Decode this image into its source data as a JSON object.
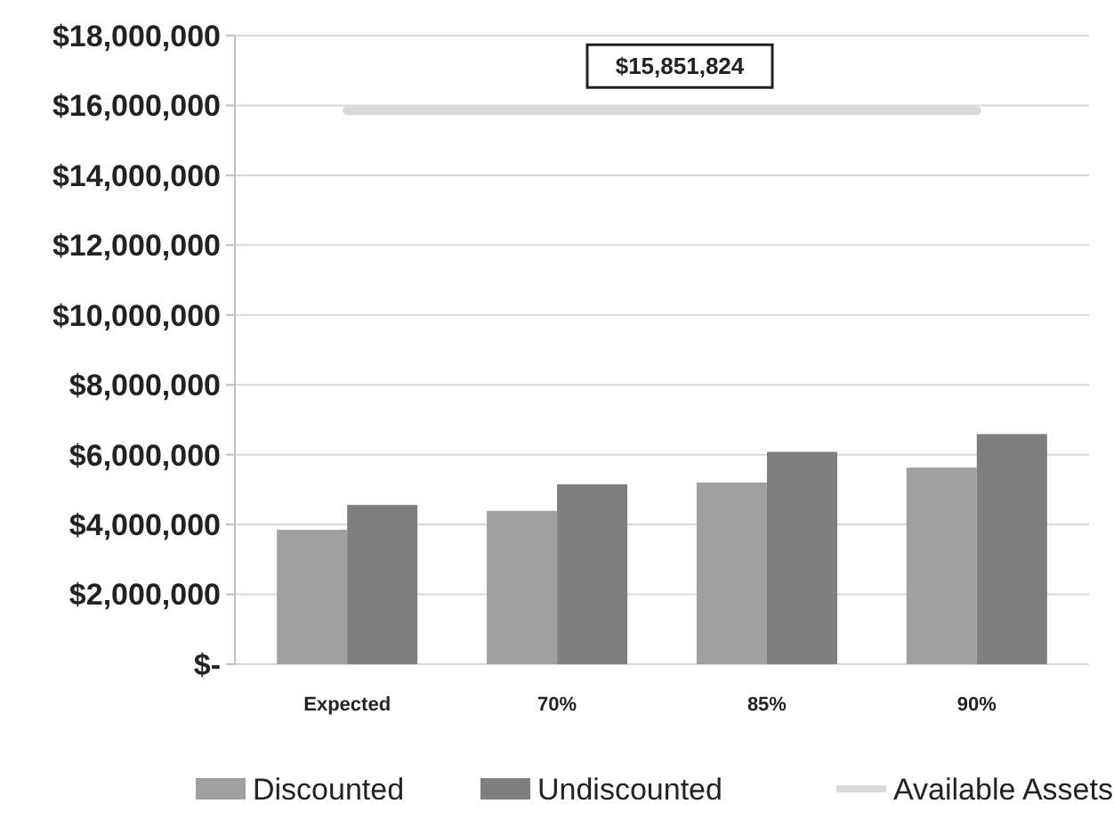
{
  "chart_data": {
    "type": "bar",
    "categories": [
      "Expected",
      "70%",
      "85%",
      "90%"
    ],
    "series": [
      {
        "name": "Discounted",
        "color": "#a0a0a0",
        "values": [
          3850000,
          4390000,
          5200000,
          5630000
        ]
      },
      {
        "name": "Undiscounted",
        "color": "#7f7f7f",
        "values": [
          4560000,
          5150000,
          6080000,
          6590000
        ]
      },
      {
        "name": "Available Assets",
        "type": "line",
        "color": "#d9d9d9",
        "values": [
          15851824,
          15851824,
          15851824,
          15851824
        ]
      }
    ],
    "annotations": [
      {
        "text": "$15,851,824",
        "y": 15851824
      }
    ],
    "ylim": [
      0,
      18000000
    ],
    "yticks": [
      {
        "value": 0,
        "label": "$-"
      },
      {
        "value": 2000000,
        "label": "$2,000,000"
      },
      {
        "value": 4000000,
        "label": "$4,000,000"
      },
      {
        "value": 6000000,
        "label": "$6,000,000"
      },
      {
        "value": 8000000,
        "label": "$8,000,000"
      },
      {
        "value": 10000000,
        "label": "$10,000,000"
      },
      {
        "value": 12000000,
        "label": "$12,000,000"
      },
      {
        "value": 14000000,
        "label": "$14,000,000"
      },
      {
        "value": 16000000,
        "label": "$16,000,000"
      },
      {
        "value": 18000000,
        "label": "$18,000,000"
      }
    ],
    "grid": true,
    "legend": "bottom"
  }
}
